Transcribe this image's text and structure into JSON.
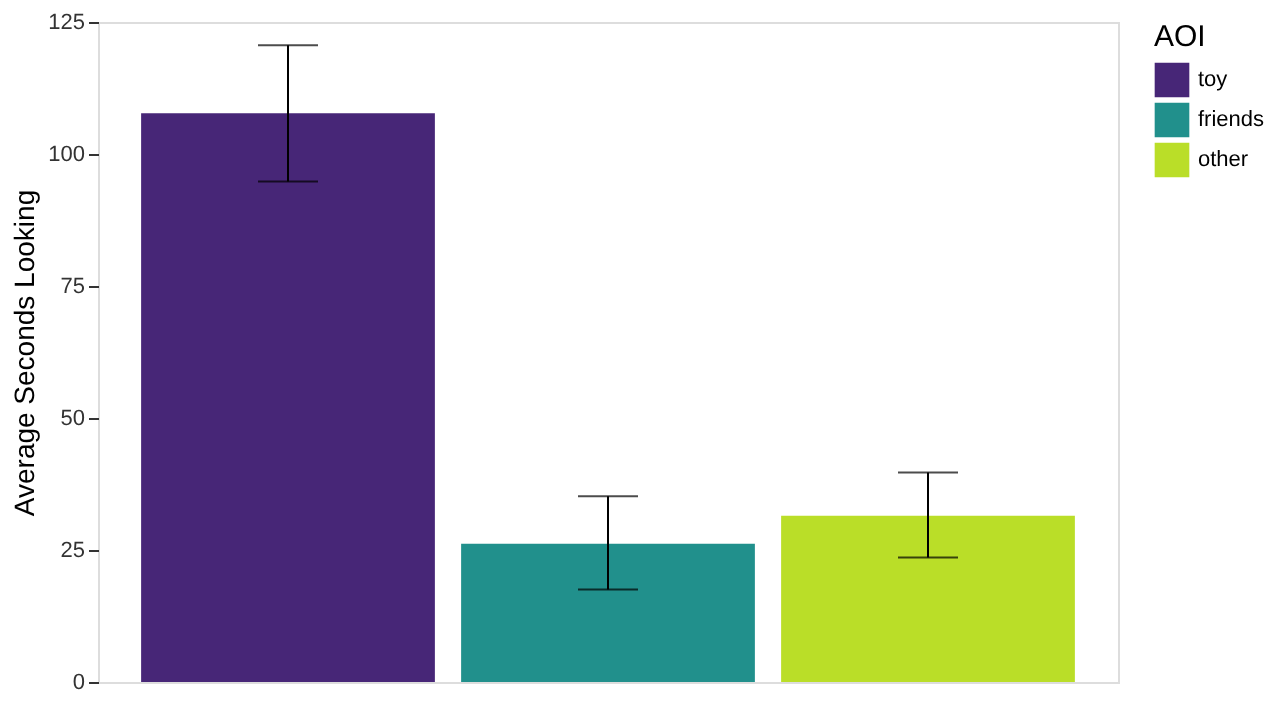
{
  "chart_data": {
    "type": "bar",
    "ylabel": "Average Seconds Looking",
    "legend_title": "AOI",
    "legend": "right",
    "categories": [
      null
    ],
    "series": [
      {
        "name": "toy",
        "color": "#472677",
        "values": [
          107.7
        ],
        "errors": [
          [
            94.8,
            120.6
          ]
        ]
      },
      {
        "name": "friends",
        "color": "#21908c",
        "values": [
          26.2
        ],
        "errors": [
          [
            17.5,
            35.2
          ]
        ]
      },
      {
        "name": "other",
        "color": "#bade28",
        "values": [
          31.5
        ],
        "errors": [
          [
            23.6,
            39.7
          ]
        ]
      }
    ],
    "ylim": [
      0,
      125
    ],
    "yticks": [
      0,
      25,
      50,
      75,
      100,
      125
    ],
    "grid": false,
    "tick_labels": "y"
  }
}
